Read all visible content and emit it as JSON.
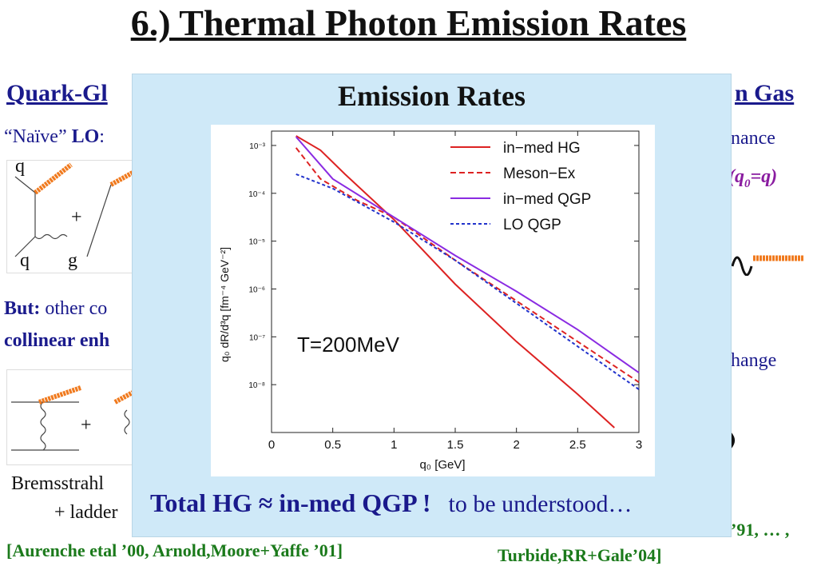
{
  "slide": {
    "title": "6.) Thermal Photon Emission Rates",
    "left_heading": "Quark-Gl",
    "right_heading": "n Gas",
    "naive_lo_prefix": "“Naïve”",
    "naive_lo_bold": "LO",
    "naive_lo_suffix": ":",
    "right_line1": "nance",
    "right_q0": "(q",
    "right_q0_sub": "0",
    "right_q0_suffix": "=q)",
    "diag1": {
      "q_top": "q",
      "plus": "+",
      "q_bottom": "q",
      "g": "g"
    },
    "but_bold": "But:",
    "but_rest": " other co",
    "collinear": "collinear enh",
    "diag2_plus": "+",
    "right_exchange": "hange",
    "bremsstrahl": "Bremsstrahl",
    "ladder": "+ ladder",
    "ref_left": "[Aurenche etal ’00, Arnold,Moore+Yaffe ’01]",
    "ref_right1": "’91, … ,",
    "ref_right2": "Turbide,RR+Gale’04]"
  },
  "overlay": {
    "title": "Emission Rates",
    "bottom_strong": "Total HG  ≈ in-med QGP !",
    "bottom_weak": "to be understood…"
  },
  "chart_data": {
    "type": "line",
    "xlabel": "q₀ [GeV]",
    "ylabel": "q₀ dR/d³q  [fm⁻⁴ GeV⁻²]",
    "annotation": "T=200MeV",
    "xlim": [
      0,
      3
    ],
    "ylim_log10": [
      -9,
      -2.7
    ],
    "y_scale": "log",
    "x_ticks": [
      "0",
      "0.5",
      "1",
      "1.5",
      "2",
      "2.5",
      "3"
    ],
    "y_ticks": [
      "10⁻³",
      "10⁻⁴",
      "10⁻⁵",
      "10⁻⁶",
      "10⁻⁷",
      "10⁻⁸"
    ],
    "legend_position": "top-right",
    "series": [
      {
        "name": "in−med HG",
        "color": "#dd2222",
        "dash": "solid",
        "x": [
          0.2,
          0.4,
          0.6,
          1.0,
          1.5,
          2.0,
          2.5,
          2.8
        ],
        "log10_y": [
          -2.8,
          -3.1,
          -3.6,
          -4.55,
          -5.9,
          -7.1,
          -8.2,
          -8.9
        ]
      },
      {
        "name": "Meson−Ex",
        "color": "#dd2222",
        "dash": "dashed",
        "x": [
          0.2,
          0.4,
          0.7,
          1.0,
          1.5,
          2.0,
          2.5,
          3.0
        ],
        "log10_y": [
          -3.05,
          -3.7,
          -4.15,
          -4.5,
          -5.4,
          -6.25,
          -7.1,
          -7.95
        ]
      },
      {
        "name": "in−med QGP",
        "color": "#8a2be2",
        "dash": "solid",
        "x": [
          0.2,
          0.5,
          1.0,
          1.5,
          2.0,
          2.5,
          3.0
        ],
        "log10_y": [
          -2.82,
          -3.7,
          -4.5,
          -5.3,
          -6.05,
          -6.85,
          -7.75
        ]
      },
      {
        "name": "LO QGP",
        "color": "#2233cc",
        "dash": "dotted",
        "x": [
          0.2,
          0.5,
          1.0,
          1.5,
          2.0,
          2.5,
          3.0
        ],
        "log10_y": [
          -3.6,
          -3.9,
          -4.6,
          -5.4,
          -6.3,
          -7.2,
          -8.1
        ]
      }
    ]
  }
}
